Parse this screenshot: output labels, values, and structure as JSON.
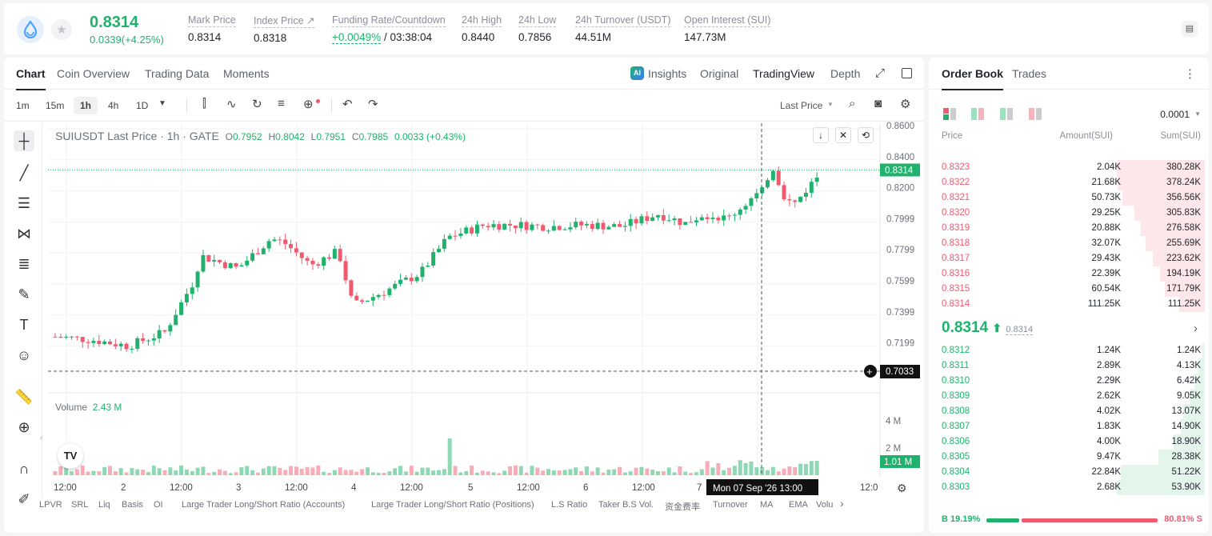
{
  "header": {
    "price": "0.8314",
    "change": "0.0339(+4.25%)",
    "stats": [
      {
        "label": "Mark Price",
        "value": "0.8314"
      },
      {
        "label": "Index Price ↗",
        "value": "0.8318"
      },
      {
        "label": "Funding Rate/Countdown",
        "value": "+0.0049%",
        "value2": " / 03:38:04"
      },
      {
        "label": "24h High",
        "value": "0.8440"
      },
      {
        "label": "24h Low",
        "value": "0.7856"
      },
      {
        "label": "24h Turnover (USDT)",
        "value": "44.51M"
      },
      {
        "label": "Open Interest (SUI)",
        "value": "147.73M"
      }
    ]
  },
  "tabs": [
    "Chart",
    "Coin Overview",
    "Trading Data",
    "Moments"
  ],
  "view_tabs": {
    "insights": "Insights",
    "original": "Original",
    "tradingview": "TradingView",
    "depth": "Depth"
  },
  "timeframes": [
    "1m",
    "15m",
    "1h",
    "4h",
    "1D"
  ],
  "price_type": "Last Price",
  "legend": {
    "title": "SUIUSDT Last Price · 1h · GATE",
    "o": "0.7952",
    "h": "0.8042",
    "l": "0.7951",
    "c": "0.7985",
    "chg": "0.0033 (+0.43%)"
  },
  "volume_label": "Volume",
  "volume_value": "2.43 M",
  "price_axis": [
    "0.8600",
    "0.8400",
    "0.8200",
    "0.7999",
    "0.7799",
    "0.7599",
    "0.7399",
    "0.7199"
  ],
  "price_tag": "0.8314",
  "cursor_price": "0.7033",
  "vol_axis": [
    "4 M",
    "2 M"
  ],
  "vol_tag": "1.01 M",
  "time_axis": [
    "12:00",
    "2",
    "12:00",
    "3",
    "12:00",
    "4",
    "12:00",
    "5",
    "12:00",
    "6",
    "12:00",
    "7",
    "12:0"
  ],
  "cursor_time": "Mon 07 Sep '26   13:00",
  "indicators": [
    "LPVR",
    "SRL",
    "Liq",
    "Basis",
    "OI",
    "Large Trader Long/Short Ratio (Accounts)",
    "Large Trader Long/Short Ratio (Positions)",
    "L.S Ratio",
    "Taker B.S Vol.",
    "资金费率",
    "Turnover",
    "MA",
    "EMA",
    "Volu"
  ],
  "orderbook": {
    "tabs": [
      "Order Book",
      "Trades"
    ],
    "precision": "0.0001",
    "headers": [
      "Price",
      "Amount(SUI)",
      "Sum(SUI)"
    ],
    "asks": [
      [
        "0.8323",
        "2.04K",
        "380.28K"
      ],
      [
        "0.8322",
        "21.68K",
        "378.24K"
      ],
      [
        "0.8321",
        "50.73K",
        "356.56K"
      ],
      [
        "0.8320",
        "29.25K",
        "305.83K"
      ],
      [
        "0.8319",
        "20.88K",
        "276.58K"
      ],
      [
        "0.8318",
        "32.07K",
        "255.69K"
      ],
      [
        "0.8317",
        "29.43K",
        "223.62K"
      ],
      [
        "0.8316",
        "22.39K",
        "194.19K"
      ],
      [
        "0.8315",
        "60.54K",
        "171.79K"
      ],
      [
        "0.8314",
        "111.25K",
        "111.25K"
      ]
    ],
    "mid": "0.8314",
    "mid_mark": "0.8314",
    "bids": [
      [
        "0.8312",
        "1.24K",
        "1.24K"
      ],
      [
        "0.8311",
        "2.89K",
        "4.13K"
      ],
      [
        "0.8310",
        "2.29K",
        "6.42K"
      ],
      [
        "0.8309",
        "2.62K",
        "9.05K"
      ],
      [
        "0.8308",
        "4.02K",
        "13.07K"
      ],
      [
        "0.8307",
        "1.83K",
        "14.90K"
      ],
      [
        "0.8306",
        "4.00K",
        "18.90K"
      ],
      [
        "0.8305",
        "9.47K",
        "28.38K"
      ],
      [
        "0.8304",
        "22.84K",
        "51.22K"
      ],
      [
        "0.8303",
        "2.68K",
        "53.90K"
      ]
    ],
    "buy_ratio": "B 19.19%",
    "sell_ratio": "80.81% S"
  },
  "colors": {
    "up": "#20b26c",
    "down": "#ef5a6f"
  }
}
